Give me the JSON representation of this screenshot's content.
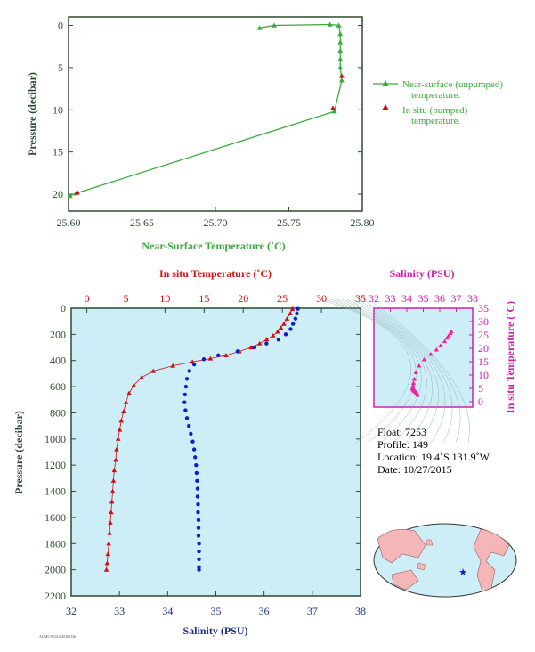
{
  "chart_data": [
    {
      "type": "line",
      "xlabel": "Near-Surface Temperature (˚C)",
      "ylabel": "Pressure (decibar)",
      "xlim": [
        25.6,
        25.8
      ],
      "ylim": [
        22,
        -1
      ],
      "x_ticks": [
        "25.60",
        "25.65",
        "25.70",
        "25.75",
        "25.80"
      ],
      "y_ticks": [
        "0",
        "5",
        "10",
        "15",
        "20"
      ],
      "series": [
        {
          "name": "Near-surface (unpumped) temperature.",
          "color": "#3aaa3a",
          "points": [
            [
              25.73,
              0.3
            ],
            [
              25.74,
              0.0
            ],
            [
              25.778,
              -0.1
            ],
            [
              25.784,
              0.0
            ],
            [
              25.785,
              1.0
            ],
            [
              25.785,
              2.0
            ],
            [
              25.785,
              3.0
            ],
            [
              25.785,
              4.0
            ],
            [
              25.785,
              5.0
            ],
            [
              25.786,
              6.5
            ],
            [
              25.781,
              10.2
            ],
            [
              25.605,
              19.9
            ],
            [
              25.601,
              20.2
            ]
          ]
        },
        {
          "name": "In situ (pumped) temperature.",
          "color": "#d01010",
          "points": [
            [
              25.786,
              6.0
            ],
            [
              25.78,
              9.8
            ],
            [
              25.606,
              19.8
            ]
          ]
        }
      ],
      "legend": [
        "Near-surface (unpumped)",
        "temperature.",
        "In situ (pumped)",
        "temperature."
      ]
    },
    {
      "type": "line",
      "ylabel": "Pressure (decibar)",
      "ylim": [
        2200,
        0
      ],
      "y_ticks": [
        "0",
        "200",
        "400",
        "600",
        "800",
        "1000",
        "1200",
        "1400",
        "1600",
        "1800",
        "2000",
        "2200"
      ],
      "top_axis": {
        "label": "In situ Temperature (˚C)",
        "range": [
          -2,
          35
        ],
        "ticks": [
          "0",
          "5",
          "10",
          "15",
          "20",
          "25",
          "30",
          "35"
        ]
      },
      "bottom_axis": {
        "label": "Salinity (PSU)",
        "range": [
          32,
          38
        ],
        "ticks": [
          "32",
          "33",
          "34",
          "35",
          "36",
          "37",
          "38"
        ]
      },
      "series": [
        {
          "name": "In situ Temperature",
          "color": "#d01010",
          "points": [
            [
              26.3,
              5
            ],
            [
              26.0,
              40
            ],
            [
              25.6,
              80
            ],
            [
              25.2,
              120
            ],
            [
              24.8,
              150
            ],
            [
              24.4,
              180
            ],
            [
              23.8,
              210
            ],
            [
              23.0,
              240
            ],
            [
              22.1,
              270
            ],
            [
              21.0,
              300
            ],
            [
              19.5,
              330
            ],
            [
              17.8,
              360
            ],
            [
              15.8,
              385
            ],
            [
              13.5,
              410
            ],
            [
              11.0,
              440
            ],
            [
              8.5,
              480
            ],
            [
              7.0,
              530
            ],
            [
              6.0,
              590
            ],
            [
              5.4,
              650
            ],
            [
              5.0,
              720
            ],
            [
              4.7,
              790
            ],
            [
              4.4,
              860
            ],
            [
              4.2,
              930
            ],
            [
              4.0,
              1000
            ],
            [
              3.8,
              1080
            ],
            [
              3.7,
              1160
            ],
            [
              3.5,
              1240
            ],
            [
              3.4,
              1320
            ],
            [
              3.3,
              1400
            ],
            [
              3.2,
              1480
            ],
            [
              3.1,
              1560
            ],
            [
              3.0,
              1640
            ],
            [
              2.9,
              1720
            ],
            [
              2.8,
              1800
            ],
            [
              2.7,
              1880
            ],
            [
              2.6,
              1950
            ],
            [
              2.5,
              2000
            ]
          ]
        },
        {
          "name": "Salinity",
          "color": "#1020c8",
          "points": [
            [
              36.7,
              5
            ],
            [
              36.68,
              40
            ],
            [
              36.65,
              80
            ],
            [
              36.6,
              120
            ],
            [
              36.55,
              160
            ],
            [
              36.45,
              200
            ],
            [
              36.3,
              240
            ],
            [
              36.05,
              270
            ],
            [
              35.8,
              300
            ],
            [
              35.45,
              330
            ],
            [
              35.05,
              360
            ],
            [
              34.75,
              390
            ],
            [
              34.55,
              430
            ],
            [
              34.45,
              480
            ],
            [
              34.4,
              540
            ],
            [
              34.38,
              600
            ],
            [
              34.36,
              660
            ],
            [
              34.35,
              720
            ],
            [
              34.37,
              780
            ],
            [
              34.4,
              840
            ],
            [
              34.44,
              900
            ],
            [
              34.48,
              960
            ],
            [
              34.52,
              1020
            ],
            [
              34.55,
              1080
            ],
            [
              34.57,
              1140
            ],
            [
              34.59,
              1200
            ],
            [
              34.6,
              1260
            ],
            [
              34.61,
              1320
            ],
            [
              34.62,
              1380
            ],
            [
              34.62,
              1440
            ],
            [
              34.63,
              1500
            ],
            [
              34.63,
              1560
            ],
            [
              34.64,
              1620
            ],
            [
              34.64,
              1680
            ],
            [
              34.64,
              1740
            ],
            [
              34.65,
              1800
            ],
            [
              34.65,
              1860
            ],
            [
              34.65,
              1920
            ],
            [
              34.65,
              1980
            ],
            [
              34.65,
              2000
            ]
          ]
        }
      ]
    },
    {
      "type": "scatter",
      "xlabel": "Salinity (PSU)",
      "ylabel": "In situ Temperature (˚C)",
      "xlim": [
        32,
        38
      ],
      "ylim": [
        -2,
        35
      ],
      "x_ticks": [
        "32",
        "33",
        "34",
        "35",
        "36",
        "37",
        "38"
      ],
      "y_ticks": [
        "0",
        "5",
        "10",
        "15",
        "20",
        "25",
        "30",
        "35"
      ],
      "color": "#ee2299",
      "points": [
        [
          36.7,
          26.3
        ],
        [
          36.65,
          25.6
        ],
        [
          36.55,
          24.8
        ],
        [
          36.45,
          23.9
        ],
        [
          36.3,
          22.6
        ],
        [
          36.05,
          21.0
        ],
        [
          35.8,
          19.5
        ],
        [
          35.45,
          17.8
        ],
        [
          35.05,
          15.8
        ],
        [
          34.75,
          13.5
        ],
        [
          34.55,
          11.0
        ],
        [
          34.45,
          8.5
        ],
        [
          34.4,
          7.0
        ],
        [
          34.38,
          6.0
        ],
        [
          34.36,
          5.4
        ],
        [
          34.35,
          5.0
        ],
        [
          34.37,
          4.7
        ],
        [
          34.4,
          4.4
        ],
        [
          34.44,
          4.2
        ],
        [
          34.48,
          4.0
        ],
        [
          34.52,
          3.8
        ],
        [
          34.56,
          3.5
        ],
        [
          34.6,
          3.3
        ],
        [
          34.62,
          3.0
        ],
        [
          34.65,
          2.5
        ]
      ]
    }
  ],
  "float_info": {
    "float": "Float:  7253",
    "profile": "Profile:  149",
    "location": "Location:  19.4˚S  131.9˚W",
    "date": "Date:  10/27/2015"
  },
  "footer_text": "AOML/NOAA 20160126",
  "colors": {
    "axis": "#2e4a2e",
    "green": "#3aaa3a",
    "red": "#d01010",
    "blue": "#1020c8",
    "magenta": "#cc20b0",
    "plot_bg": "#cdeef7",
    "land": "#f4b6b6"
  }
}
